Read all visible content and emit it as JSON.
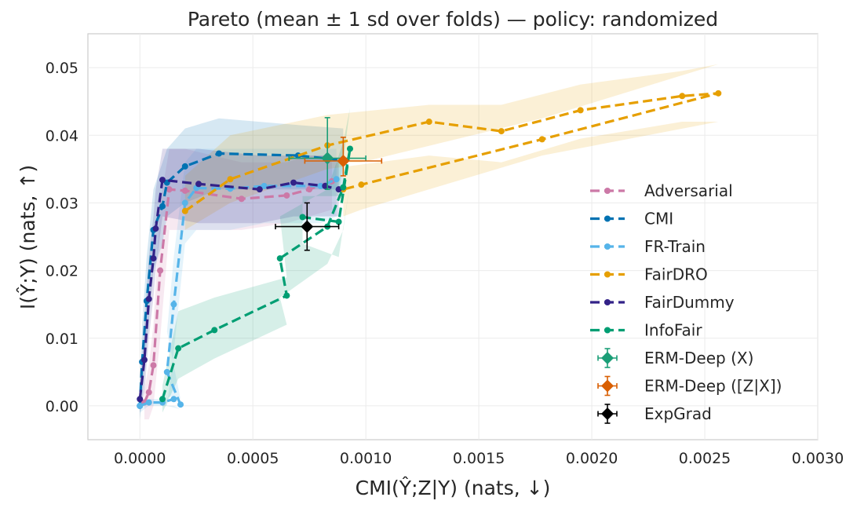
{
  "chart_data": {
    "type": "line",
    "title": "Pareto (mean ± 1 sd over folds) — policy: randomized",
    "xlabel": "CMI(Ŷ;Z|Y) (nats, ↓)",
    "ylabel": "I(Ŷ;Y) (nats, ↑)",
    "xlim": [
      -0.00023,
      0.003
    ],
    "ylim": [
      -0.005,
      0.055
    ],
    "xticks": [
      0,
      0.0005,
      0.001,
      0.0015,
      0.002,
      0.0025,
      0.003
    ],
    "xtick_labels": [
      "0.0000",
      "0.0005",
      "0.0010",
      "0.0015",
      "0.0020",
      "0.0025",
      "0.0030"
    ],
    "yticks": [
      0,
      0.01,
      0.02,
      0.03,
      0.04,
      0.05
    ],
    "ytick_labels": [
      "0.00",
      "0.01",
      "0.02",
      "0.03",
      "0.04",
      "0.05"
    ],
    "grid": true,
    "legend_position": "right",
    "series": [
      {
        "name": "Adversarial",
        "color": "#cc79a7",
        "points": [
          [
            2e-05,
            0.0005
          ],
          [
            4e-05,
            0.002
          ],
          [
            6e-05,
            0.006
          ],
          [
            9e-05,
            0.02
          ],
          [
            0.00013,
            0.032
          ],
          [
            0.0002,
            0.0318
          ],
          [
            0.00045,
            0.0306
          ],
          [
            0.00065,
            0.0311
          ],
          [
            0.00075,
            0.032
          ],
          [
            0.00085,
            0.0332
          ]
        ],
        "band_upper": [
          0.0025,
          0.006,
          0.012,
          0.03,
          0.038,
          0.038,
          0.036,
          0.036,
          0.037,
          0.037
        ],
        "band_lower": [
          -0.002,
          -0.002,
          0.0,
          0.01,
          0.026,
          0.026,
          0.026,
          0.027,
          0.028,
          0.029
        ]
      },
      {
        "name": "CMI",
        "color": "#0072b2",
        "points": [
          [
            0.0,
            0.0
          ],
          [
            1e-05,
            0.0065
          ],
          [
            3e-05,
            0.0155
          ],
          [
            6e-05,
            0.026
          ],
          [
            0.0001,
            0.0295
          ],
          [
            0.00012,
            0.033
          ],
          [
            0.0002,
            0.0354
          ],
          [
            0.00035,
            0.0373
          ],
          [
            0.0007,
            0.037
          ],
          [
            0.0009,
            0.0363
          ]
        ],
        "band_upper": [
          0.003,
          0.012,
          0.022,
          0.032,
          0.036,
          0.038,
          0.041,
          0.0425,
          0.0415,
          0.041
        ],
        "band_lower": [
          -0.002,
          0.001,
          0.009,
          0.02,
          0.024,
          0.028,
          0.03,
          0.032,
          0.032,
          0.032
        ]
      },
      {
        "name": "FR-Train",
        "color": "#56b4e9",
        "points": [
          [
            0.0,
            0.0
          ],
          [
            4e-05,
            0.0005
          ],
          [
            0.0001,
            0.0005
          ],
          [
            0.00015,
            0.001
          ],
          [
            0.00018,
            0.0002
          ],
          [
            0.00012,
            0.005
          ],
          [
            0.00015,
            0.015
          ],
          [
            0.0002,
            0.03
          ],
          [
            0.00025,
            0.0322
          ],
          [
            0.0004,
            0.0321
          ],
          [
            0.00055,
            0.0325
          ],
          [
            0.0008,
            0.0325
          ],
          [
            0.00087,
            0.0335
          ]
        ],
        "band_upper": [
          0.001,
          0.001,
          0.001,
          0.0015,
          0.001,
          0.011,
          0.022,
          0.036,
          0.038,
          0.038,
          0.038,
          0.038,
          0.038
        ],
        "band_lower": [
          -0.001,
          0.0,
          0.0,
          0.0,
          -0.0005,
          0.0,
          0.008,
          0.024,
          0.026,
          0.026,
          0.027,
          0.027,
          0.028
        ]
      },
      {
        "name": "FairDRO",
        "color": "#e69f00",
        "points": [
          [
            0.0002,
            0.0288
          ],
          [
            0.0004,
            0.0335
          ],
          [
            0.00083,
            0.0385
          ],
          [
            0.00128,
            0.042
          ],
          [
            0.0016,
            0.0406
          ],
          [
            0.00195,
            0.0437
          ],
          [
            0.0024,
            0.0458
          ],
          [
            0.00256,
            0.0462
          ],
          [
            0.00178,
            0.0394
          ],
          [
            0.00098,
            0.0327
          ],
          [
            0.0009,
            0.032
          ]
        ],
        "band_upper": [
          0.034,
          0.04,
          0.043,
          0.0445,
          0.0445,
          0.0475,
          0.0495,
          0.0505,
          0.0425,
          0.036,
          0.036
        ],
        "band_lower": [
          0.026,
          0.03,
          0.035,
          0.037,
          0.036,
          0.0395,
          0.042,
          0.042,
          0.037,
          0.029,
          0.028
        ]
      },
      {
        "name": "FairDummy",
        "color": "#332288",
        "points": [
          [
            0.0,
            0.001
          ],
          [
            2e-05,
            0.0068
          ],
          [
            4e-05,
            0.0158
          ],
          [
            6e-05,
            0.0218
          ],
          [
            7e-05,
            0.0262
          ],
          [
            0.0001,
            0.0334
          ],
          [
            0.00026,
            0.0328
          ],
          [
            0.00053,
            0.032
          ],
          [
            0.00068,
            0.033
          ],
          [
            0.00082,
            0.0325
          ],
          [
            0.00088,
            0.032
          ]
        ],
        "band_upper": [
          0.003,
          0.012,
          0.022,
          0.028,
          0.032,
          0.038,
          0.038,
          0.037,
          0.037,
          0.037,
          0.036
        ],
        "band_lower": [
          -0.001,
          0.002,
          0.01,
          0.016,
          0.02,
          0.028,
          0.027,
          0.027,
          0.028,
          0.028,
          0.028
        ]
      },
      {
        "name": "InfoFair",
        "color": "#009e73",
        "points": [
          [
            0.0001,
            0.001
          ],
          [
            0.00017,
            0.0085
          ],
          [
            0.00033,
            0.0112
          ],
          [
            0.00065,
            0.0163
          ],
          [
            0.00062,
            0.0218
          ],
          [
            0.00083,
            0.0265
          ],
          [
            0.0009,
            0.0323
          ],
          [
            0.00093,
            0.038
          ],
          [
            0.00088,
            0.0272
          ],
          [
            0.00072,
            0.0279
          ]
        ],
        "band_upper": [
          0.003,
          0.014,
          0.016,
          0.019,
          0.028,
          0.032,
          0.039,
          0.044,
          0.031,
          0.031
        ],
        "band_lower": [
          -0.001,
          0.004,
          0.007,
          0.012,
          0.016,
          0.021,
          0.026,
          0.033,
          0.022,
          0.024
        ]
      }
    ],
    "error_points": [
      {
        "name": "ERM-Deep (X)",
        "color": "#1b9e77",
        "x": 0.00083,
        "y": 0.0366,
        "xerr": 0.00017,
        "yerr_low": 0.0046,
        "yerr_high": 0.006
      },
      {
        "name": "ERM-Deep ([Z|X])",
        "color": "#d95f02",
        "x": 0.0009,
        "y": 0.0362,
        "xerr": 0.00017,
        "yerr_low": 0.0022,
        "yerr_high": 0.0035
      },
      {
        "name": "ExpGrad",
        "color": "#000000",
        "x": 0.00074,
        "y": 0.0265,
        "xerr": 0.00014,
        "yerr_low": 0.0035,
        "yerr_high": 0.0035
      }
    ]
  }
}
